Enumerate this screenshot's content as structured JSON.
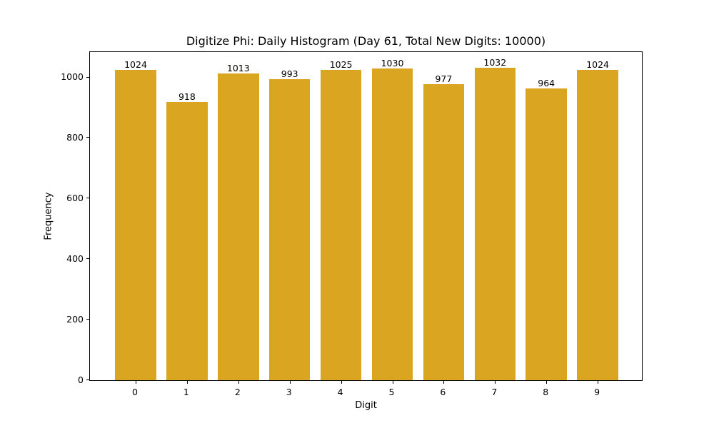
{
  "chart_data": {
    "type": "bar",
    "title": "Digitize Phi: Daily Histogram (Day 61, Total New Digits: 10000)",
    "xlabel": "Digit",
    "ylabel": "Frequency",
    "categories": [
      "0",
      "1",
      "2",
      "3",
      "4",
      "5",
      "6",
      "7",
      "8",
      "9"
    ],
    "values": [
      1024,
      918,
      1013,
      993,
      1025,
      1030,
      977,
      1032,
      964,
      1024
    ],
    "bar_labels": [
      "1024",
      "918",
      "1013",
      "993",
      "1025",
      "1030",
      "977",
      "1032",
      "964",
      "1024"
    ],
    "yticks": [
      "0",
      "200",
      "400",
      "600",
      "800",
      "1000"
    ],
    "ylim": [
      0,
      1083.6
    ],
    "grid": false,
    "legend": null,
    "bar_color": "#DAA520"
  }
}
